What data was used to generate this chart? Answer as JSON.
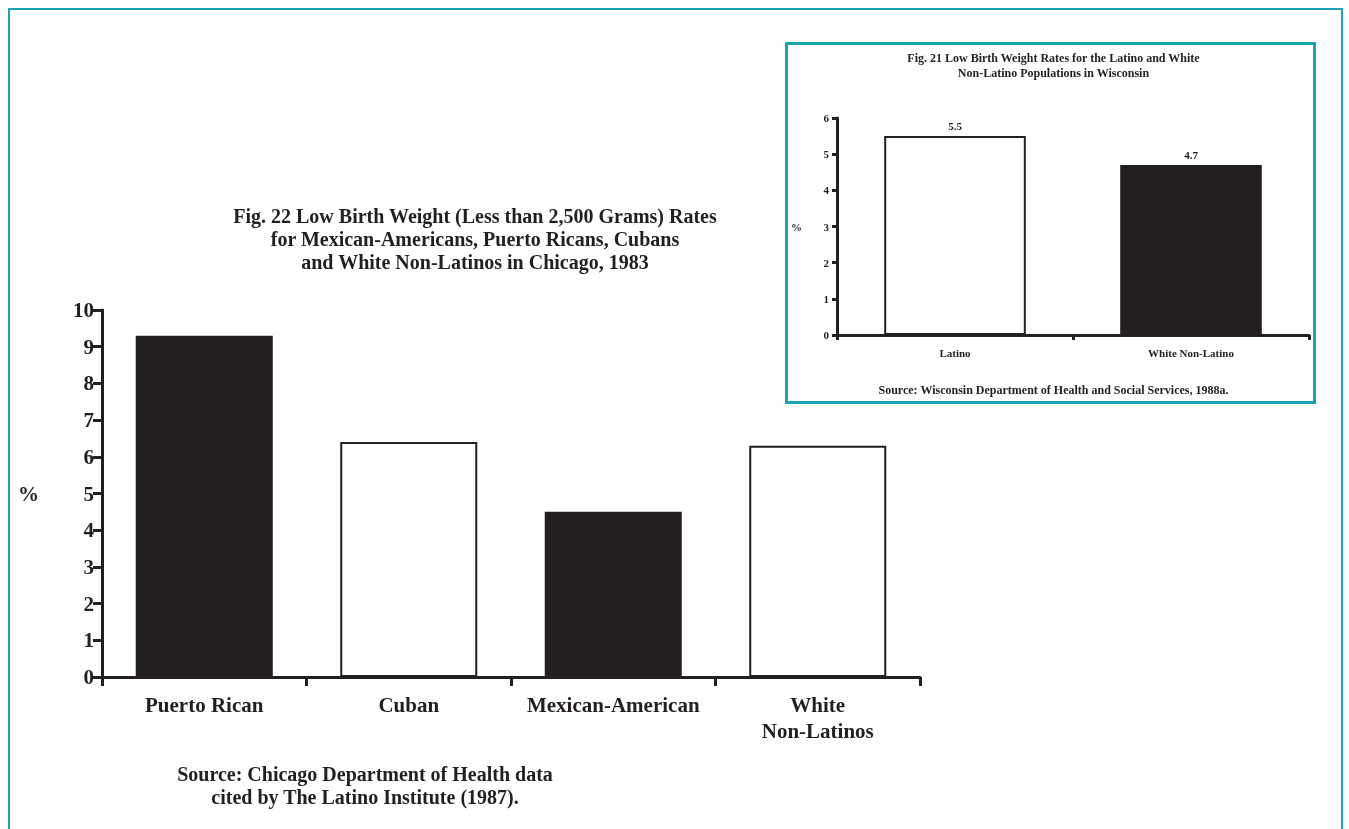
{
  "chart_data": [
    {
      "type": "bar",
      "title": "Fig. 21 Low Birth Weight Rates for the Latino and White\nNon-Latino Populations in Wisconsin",
      "ylabel": "%",
      "categories": [
        "Latino",
        "White Non-Latino"
      ],
      "values": [
        5.5,
        4.7
      ],
      "colors": [
        "#ffffff",
        "#231f20"
      ],
      "ylim": [
        0,
        6
      ],
      "yticks": [
        0,
        1,
        2,
        3,
        4,
        5,
        6
      ],
      "data_labels": true,
      "annotations": [
        "Source: Wisconsin Department of Health and Social Services, 1988a."
      ]
    },
    {
      "type": "bar",
      "title": "Fig. 22 Low Birth Weight (Less than 2,500 Grams) Rates\nfor Mexican-Americans, Puerto Ricans, Cubans\nand White Non-Latinos in Chicago, 1983",
      "ylabel": "%",
      "categories": [
        "Puerto Rican",
        "Cuban",
        "Mexican-American",
        "White\nNon-Latinos"
      ],
      "values": [
        9.3,
        6.4,
        4.5,
        6.3
      ],
      "colors": [
        "#231f20",
        "#ffffff",
        "#231f20",
        "#ffffff"
      ],
      "ylim": [
        0,
        10
      ],
      "yticks": [
        0,
        1,
        2,
        3,
        4,
        5,
        6,
        7,
        8,
        9,
        10
      ],
      "annotations": [
        "Source: Chicago Department of Health data\ncited by The Latino Institute (1987)."
      ]
    }
  ]
}
